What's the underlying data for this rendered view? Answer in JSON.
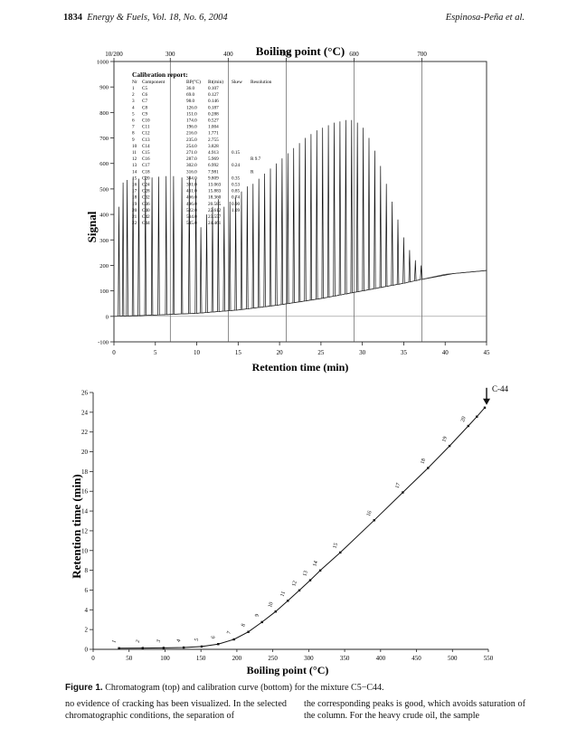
{
  "header": {
    "page_number": "1834",
    "journal": "Energy & Fuels, Vol. 18, No. 6, 2004",
    "authors": "Espinosa-Peña et al."
  },
  "chart_data": [
    {
      "type": "line",
      "title": "",
      "xlabel": "Retention time (min)",
      "ylabel": "Signal",
      "top_axis_label": "Boiling point (°C)",
      "xlim": [
        0,
        45
      ],
      "ylim": [
        -100,
        1000
      ],
      "x_ticks": [
        "0",
        "5",
        "10",
        "15",
        "20",
        "25",
        "30",
        "35",
        "40",
        "45"
      ],
      "y_ticks": [
        "-100",
        "0",
        "100",
        "200",
        "300",
        "400",
        "500",
        "600",
        "700",
        "800",
        "900",
        "1000"
      ],
      "top_ticks": [
        {
          "label": "10/200",
          "t": 0
        },
        {
          "label": "300",
          "t": 6.8
        },
        {
          "label": "400",
          "t": 13.8
        },
        {
          "label": "500",
          "t": 20.8
        },
        {
          "label": "600",
          "t": 29.0
        },
        {
          "label": "700",
          "t": 37.2
        }
      ],
      "vertical_lines_t": [
        6.8,
        13.8,
        20.8,
        29.0,
        37.2
      ],
      "baseline": [
        {
          "t": 0,
          "v": 0
        },
        {
          "t": 5,
          "v": 5
        },
        {
          "t": 10,
          "v": 12
        },
        {
          "t": 15,
          "v": 25
        },
        {
          "t": 20,
          "v": 45
        },
        {
          "t": 25,
          "v": 70
        },
        {
          "t": 30,
          "v": 100
        },
        {
          "t": 35,
          "v": 130
        },
        {
          "t": 40,
          "v": 165
        },
        {
          "t": 45,
          "v": 180
        }
      ],
      "peaks": [
        {
          "t": 0.6,
          "v": 430
        },
        {
          "t": 1.1,
          "v": 525
        },
        {
          "t": 1.6,
          "v": 535
        },
        {
          "t": 2.3,
          "v": 545
        },
        {
          "t": 3.0,
          "v": 540
        },
        {
          "t": 3.8,
          "v": 550
        },
        {
          "t": 4.6,
          "v": 545
        },
        {
          "t": 5.4,
          "v": 548
        },
        {
          "t": 6.3,
          "v": 550
        },
        {
          "t": 7.2,
          "v": 550
        },
        {
          "t": 8.2,
          "v": 545
        },
        {
          "t": 9.1,
          "v": 550
        },
        {
          "t": 9.9,
          "v": 540
        },
        {
          "t": 10.5,
          "v": 350
        },
        {
          "t": 11.2,
          "v": 400
        },
        {
          "t": 11.9,
          "v": 430
        },
        {
          "t": 12.6,
          "v": 460
        },
        {
          "t": 13.3,
          "v": 430
        },
        {
          "t": 14.0,
          "v": 450
        },
        {
          "t": 14.7,
          "v": 470
        },
        {
          "t": 15.4,
          "v": 490
        },
        {
          "t": 16.1,
          "v": 510
        },
        {
          "t": 16.8,
          "v": 520
        },
        {
          "t": 17.5,
          "v": 540
        },
        {
          "t": 18.2,
          "v": 560
        },
        {
          "t": 18.9,
          "v": 580
        },
        {
          "t": 19.6,
          "v": 600
        },
        {
          "t": 20.3,
          "v": 620
        },
        {
          "t": 21.0,
          "v": 640
        },
        {
          "t": 21.7,
          "v": 660
        },
        {
          "t": 22.4,
          "v": 680
        },
        {
          "t": 23.1,
          "v": 700
        },
        {
          "t": 23.8,
          "v": 715
        },
        {
          "t": 24.5,
          "v": 730
        },
        {
          "t": 25.2,
          "v": 740
        },
        {
          "t": 25.9,
          "v": 750
        },
        {
          "t": 26.6,
          "v": 760
        },
        {
          "t": 27.3,
          "v": 765
        },
        {
          "t": 28.0,
          "v": 770
        },
        {
          "t": 28.7,
          "v": 770
        },
        {
          "t": 29.4,
          "v": 760
        },
        {
          "t": 30.1,
          "v": 740
        },
        {
          "t": 30.8,
          "v": 700
        },
        {
          "t": 31.5,
          "v": 650
        },
        {
          "t": 32.2,
          "v": 590
        },
        {
          "t": 32.9,
          "v": 520
        },
        {
          "t": 33.6,
          "v": 450
        },
        {
          "t": 34.3,
          "v": 380
        },
        {
          "t": 35.0,
          "v": 310
        },
        {
          "t": 35.7,
          "v": 260
        },
        {
          "t": 36.4,
          "v": 220
        },
        {
          "t": 37.1,
          "v": 200
        }
      ],
      "calibration_report": {
        "title": "Calibration report:",
        "columns": [
          "Nr",
          "Component",
          "BP(°C)",
          "Rt(min)",
          "Skew",
          "Resolution"
        ],
        "rows": [
          [
            "1",
            "C5",
            "36.0",
            "0.107",
            "",
            ""
          ],
          [
            "2",
            "C6",
            "69.0",
            "0.127",
            "",
            ""
          ],
          [
            "3",
            "C7",
            "98.0",
            "0.146",
            "",
            ""
          ],
          [
            "4",
            "C8",
            "126.0",
            "0.187",
            "",
            ""
          ],
          [
            "5",
            "C9",
            "151.0",
            "0.288",
            "",
            ""
          ],
          [
            "6",
            "C10",
            "174.0",
            "0.527",
            "",
            ""
          ],
          [
            "7",
            "C11",
            "196.0",
            "1.004",
            "",
            ""
          ],
          [
            "8",
            "C12",
            "216.0",
            "1.771",
            "",
            ""
          ],
          [
            "9",
            "C13",
            "235.0",
            "2.755",
            "",
            ""
          ],
          [
            "10",
            "C14",
            "254.0",
            "3.828",
            "",
            ""
          ],
          [
            "11",
            "C15",
            "271.0",
            "4.913",
            "0.15",
            ""
          ],
          [
            "12",
            "C16",
            "287.0",
            "5.969",
            "",
            "R 9.7"
          ],
          [
            "13",
            "C17",
            "302.0",
            "6.992",
            "0.24",
            ""
          ],
          [
            "14",
            "C18",
            "316.0",
            "7.981",
            "",
            "R"
          ],
          [
            "15",
            "C20",
            "344.0",
            "9.809",
            "0.35",
            ""
          ],
          [
            "16",
            "C24",
            "391.0",
            "13.063",
            "0.53",
            ""
          ],
          [
            "17",
            "C28",
            "431.0",
            "15.883",
            "0.85",
            ""
          ],
          [
            "18",
            "C32",
            "466.0",
            "18.360",
            "0.74",
            ""
          ],
          [
            "19",
            "C36",
            "496.0",
            "20.585",
            "0.90",
            ""
          ],
          [
            "20",
            "C40",
            "522.0",
            "22.612",
            "1.09",
            ""
          ],
          [
            "21",
            "C42",
            "534.0",
            "23.557",
            "",
            ""
          ],
          [
            "22",
            "C44",
            "545.0",
            "24.461",
            "",
            ""
          ]
        ]
      }
    },
    {
      "type": "scatter",
      "title": "",
      "xlabel": "Boiling point (°C)",
      "ylabel": "Retention time (min)",
      "xlim": [
        0,
        550
      ],
      "ylim": [
        0,
        26
      ],
      "x_ticks": [
        "0",
        "50",
        "100",
        "150",
        "200",
        "250",
        "300",
        "350",
        "400",
        "450",
        "500",
        "550"
      ],
      "y_ticks": [
        "0",
        "2",
        "4",
        "6",
        "8",
        "10",
        "12",
        "14",
        "16",
        "18",
        "20",
        "22",
        "24",
        "26"
      ],
      "arrow_label": "C-44",
      "points": [
        {
          "bp": 36.0,
          "rt": 0.107,
          "label": "1"
        },
        {
          "bp": 69.0,
          "rt": 0.127,
          "label": "2"
        },
        {
          "bp": 98.0,
          "rt": 0.146,
          "label": "3"
        },
        {
          "bp": 126.0,
          "rt": 0.187,
          "label": "4"
        },
        {
          "bp": 151.0,
          "rt": 0.288,
          "label": "5"
        },
        {
          "bp": 174.0,
          "rt": 0.527,
          "label": "6"
        },
        {
          "bp": 196.0,
          "rt": 1.004,
          "label": "7"
        },
        {
          "bp": 216.0,
          "rt": 1.771,
          "label": "8"
        },
        {
          "bp": 235.0,
          "rt": 2.755,
          "label": "9"
        },
        {
          "bp": 254.0,
          "rt": 3.828,
          "label": "10"
        },
        {
          "bp": 271.0,
          "rt": 4.913,
          "label": "11"
        },
        {
          "bp": 287.0,
          "rt": 5.969,
          "label": "12"
        },
        {
          "bp": 302.0,
          "rt": 6.992,
          "label": "13"
        },
        {
          "bp": 316.0,
          "rt": 7.981,
          "label": "14"
        },
        {
          "bp": 344.0,
          "rt": 9.809,
          "label": "15"
        },
        {
          "bp": 391.0,
          "rt": 13.063,
          "label": "16"
        },
        {
          "bp": 431.0,
          "rt": 15.883,
          "label": "17"
        },
        {
          "bp": 466.0,
          "rt": 18.36,
          "label": "18"
        },
        {
          "bp": 496.0,
          "rt": 20.585,
          "label": "19"
        },
        {
          "bp": 522.0,
          "rt": 22.612,
          "label": "20"
        },
        {
          "bp": 534.0,
          "rt": 23.557,
          "label": ""
        },
        {
          "bp": 545.0,
          "rt": 24.461,
          "label": ""
        }
      ]
    }
  ],
  "caption": {
    "label": "Figure 1.",
    "text": "Chromatogram (top) and calibration curve (bottom) for the mixture C5−C44."
  },
  "body": {
    "col1": "no evidence of cracking has been visualized. In the selected chromatographic conditions, the separation of",
    "col2": "the corresponding peaks is good, which avoids saturation of the column. For the heavy crude oil, the sample"
  }
}
